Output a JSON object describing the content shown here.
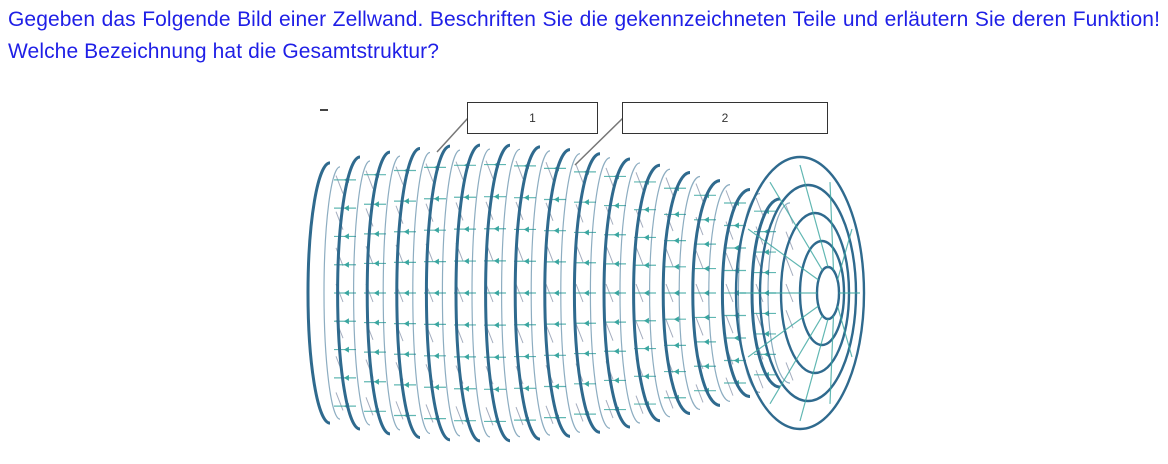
{
  "question": {
    "text": "Gegeben das Folgende Bild einer Zellwand. Beschriften Sie die gekennzeichneten Teile und erläutern Sie deren Funktion! Welche Bezeichnung hat die Gesamtstruktur?",
    "color": "#1f1fe6"
  },
  "diagram": {
    "labels": [
      {
        "number": "1"
      },
      {
        "number": "2"
      }
    ],
    "colors": {
      "rings": "#2f6a8e",
      "fibrils": "#3aa6a0",
      "ticks": "#5a6a8a",
      "leader": "#777777"
    }
  }
}
